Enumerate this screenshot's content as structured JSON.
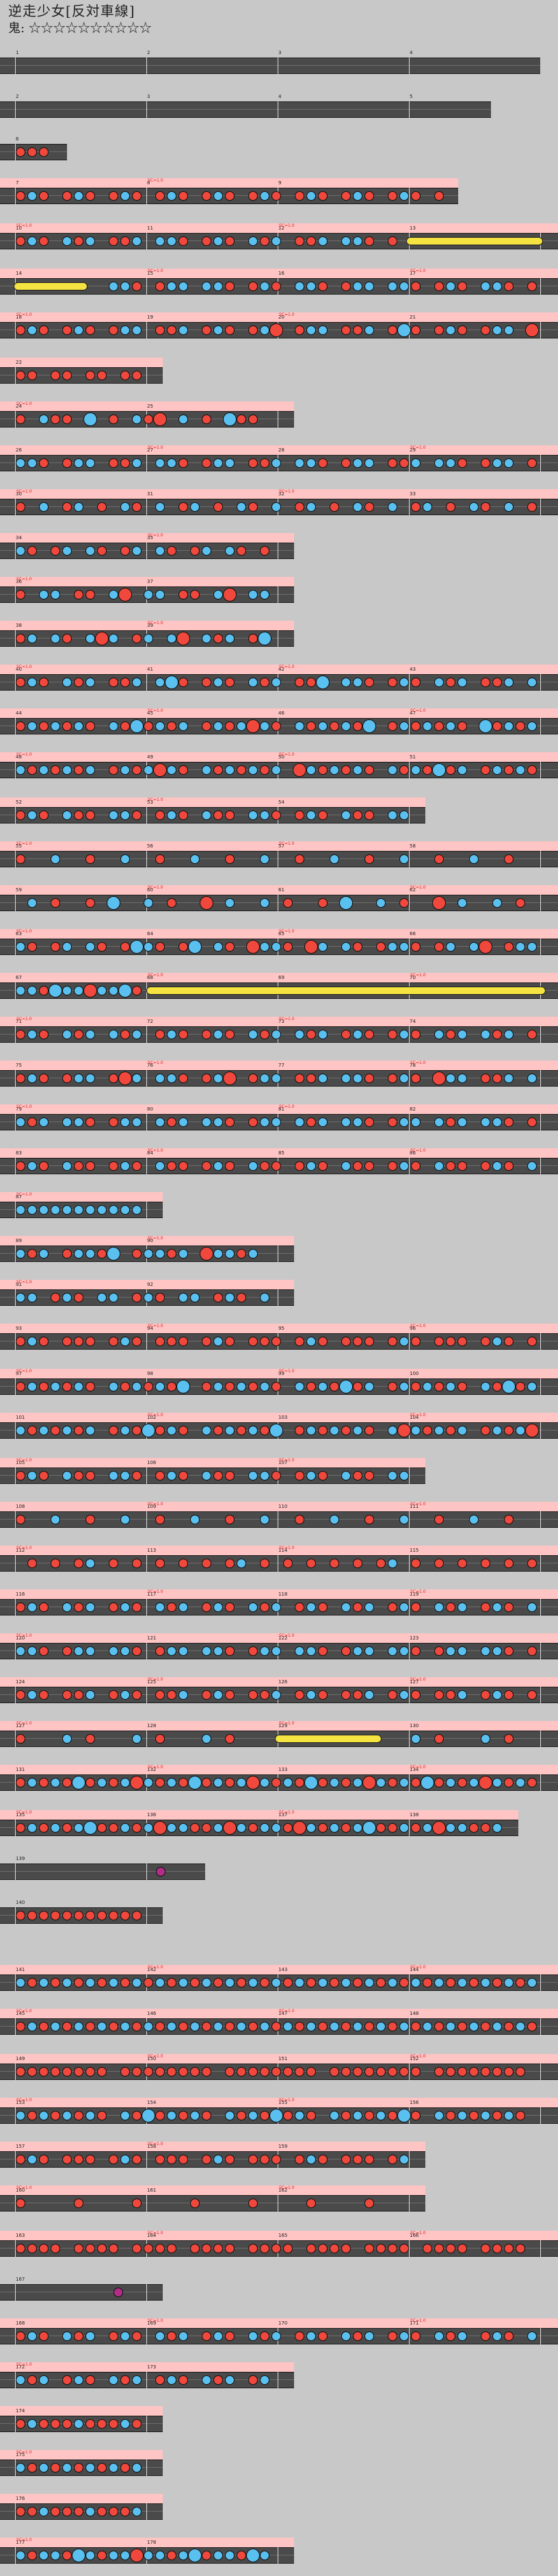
{
  "header": {
    "title": "逆走少女[反対車線]",
    "difficulty_label": "鬼:",
    "stars": "☆☆☆☆☆☆☆☆☆☆"
  },
  "colors": {
    "background": "#c8c8c8",
    "track": "#4a4a4a",
    "gogo": "#ffc4c4",
    "don": "#f0483c",
    "ka": "#5ac0f0",
    "roll": "#f4e340",
    "balloon": "#b22d86"
  }
}
